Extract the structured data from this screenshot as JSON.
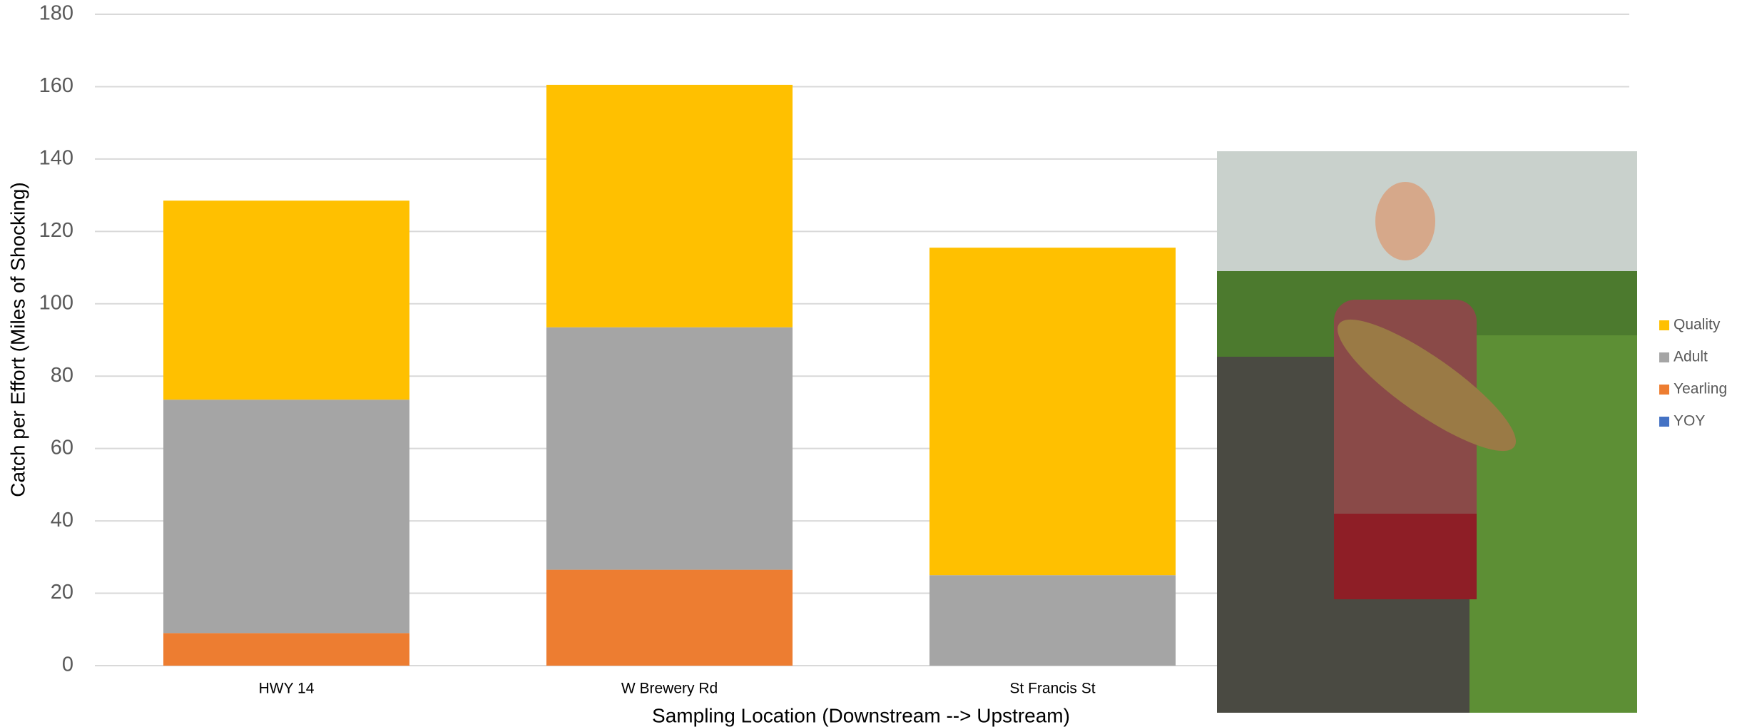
{
  "chart_data": {
    "type": "stacked-bar",
    "x_label": "Sampling Location (Downstream --> Upstream)",
    "y_label": "Catch per Effort (Miles of Shocking)",
    "categories": [
      "HWY 14",
      "W Brewery Rd",
      "St Francis St"
    ],
    "series": [
      {
        "name": "YOY",
        "color": "#4472c4",
        "values": [
          0,
          0,
          0
        ]
      },
      {
        "name": "Yearling",
        "color": "#ed7d31",
        "values": [
          9,
          26.5,
          0
        ]
      },
      {
        "name": "Adult",
        "color": "#a5a5a5",
        "values": [
          64.5,
          67,
          25
        ]
      },
      {
        "name": "Quality",
        "color": "#ffc000",
        "values": [
          55,
          67,
          90.5
        ]
      }
    ],
    "ylim": [
      0,
      180
    ],
    "yticks": [
      0,
      20,
      40,
      60,
      80,
      100,
      120,
      140,
      160,
      180
    ],
    "grid": true,
    "legend": "right"
  }
}
